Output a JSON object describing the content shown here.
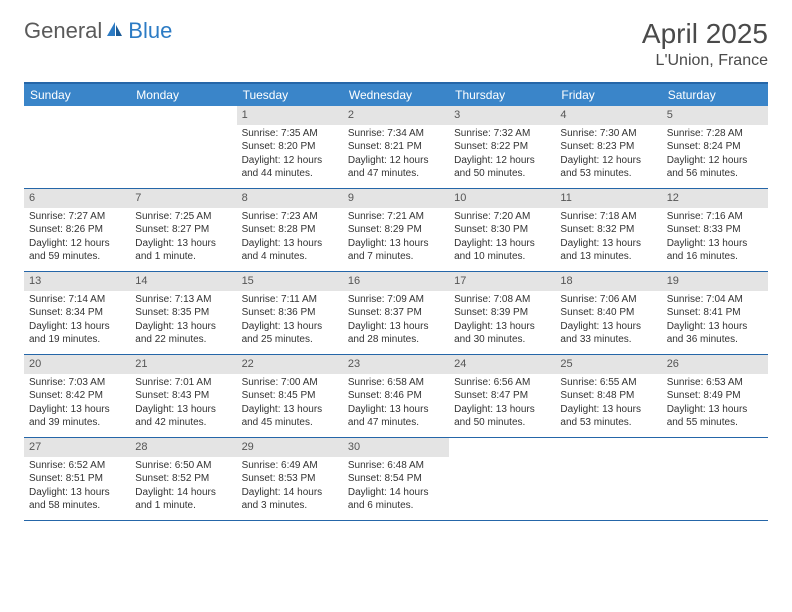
{
  "logo": {
    "general": "General",
    "blue": "Blue"
  },
  "title": "April 2025",
  "location": "L'Union, France",
  "colors": {
    "header_bar": "#3a85c9",
    "border": "#2566a8",
    "daynum_bg": "#e4e4e4",
    "text": "#333333",
    "logo_blue": "#2c7bc4",
    "logo_gray": "#5a5a5a"
  },
  "day_names": [
    "Sunday",
    "Monday",
    "Tuesday",
    "Wednesday",
    "Thursday",
    "Friday",
    "Saturday"
  ],
  "weeks": [
    [
      null,
      null,
      {
        "n": "1",
        "sr": "Sunrise: 7:35 AM",
        "ss": "Sunset: 8:20 PM",
        "dl": "Daylight: 12 hours and 44 minutes."
      },
      {
        "n": "2",
        "sr": "Sunrise: 7:34 AM",
        "ss": "Sunset: 8:21 PM",
        "dl": "Daylight: 12 hours and 47 minutes."
      },
      {
        "n": "3",
        "sr": "Sunrise: 7:32 AM",
        "ss": "Sunset: 8:22 PM",
        "dl": "Daylight: 12 hours and 50 minutes."
      },
      {
        "n": "4",
        "sr": "Sunrise: 7:30 AM",
        "ss": "Sunset: 8:23 PM",
        "dl": "Daylight: 12 hours and 53 minutes."
      },
      {
        "n": "5",
        "sr": "Sunrise: 7:28 AM",
        "ss": "Sunset: 8:24 PM",
        "dl": "Daylight: 12 hours and 56 minutes."
      }
    ],
    [
      {
        "n": "6",
        "sr": "Sunrise: 7:27 AM",
        "ss": "Sunset: 8:26 PM",
        "dl": "Daylight: 12 hours and 59 minutes."
      },
      {
        "n": "7",
        "sr": "Sunrise: 7:25 AM",
        "ss": "Sunset: 8:27 PM",
        "dl": "Daylight: 13 hours and 1 minute."
      },
      {
        "n": "8",
        "sr": "Sunrise: 7:23 AM",
        "ss": "Sunset: 8:28 PM",
        "dl": "Daylight: 13 hours and 4 minutes."
      },
      {
        "n": "9",
        "sr": "Sunrise: 7:21 AM",
        "ss": "Sunset: 8:29 PM",
        "dl": "Daylight: 13 hours and 7 minutes."
      },
      {
        "n": "10",
        "sr": "Sunrise: 7:20 AM",
        "ss": "Sunset: 8:30 PM",
        "dl": "Daylight: 13 hours and 10 minutes."
      },
      {
        "n": "11",
        "sr": "Sunrise: 7:18 AM",
        "ss": "Sunset: 8:32 PM",
        "dl": "Daylight: 13 hours and 13 minutes."
      },
      {
        "n": "12",
        "sr": "Sunrise: 7:16 AM",
        "ss": "Sunset: 8:33 PM",
        "dl": "Daylight: 13 hours and 16 minutes."
      }
    ],
    [
      {
        "n": "13",
        "sr": "Sunrise: 7:14 AM",
        "ss": "Sunset: 8:34 PM",
        "dl": "Daylight: 13 hours and 19 minutes."
      },
      {
        "n": "14",
        "sr": "Sunrise: 7:13 AM",
        "ss": "Sunset: 8:35 PM",
        "dl": "Daylight: 13 hours and 22 minutes."
      },
      {
        "n": "15",
        "sr": "Sunrise: 7:11 AM",
        "ss": "Sunset: 8:36 PM",
        "dl": "Daylight: 13 hours and 25 minutes."
      },
      {
        "n": "16",
        "sr": "Sunrise: 7:09 AM",
        "ss": "Sunset: 8:37 PM",
        "dl": "Daylight: 13 hours and 28 minutes."
      },
      {
        "n": "17",
        "sr": "Sunrise: 7:08 AM",
        "ss": "Sunset: 8:39 PM",
        "dl": "Daylight: 13 hours and 30 minutes."
      },
      {
        "n": "18",
        "sr": "Sunrise: 7:06 AM",
        "ss": "Sunset: 8:40 PM",
        "dl": "Daylight: 13 hours and 33 minutes."
      },
      {
        "n": "19",
        "sr": "Sunrise: 7:04 AM",
        "ss": "Sunset: 8:41 PM",
        "dl": "Daylight: 13 hours and 36 minutes."
      }
    ],
    [
      {
        "n": "20",
        "sr": "Sunrise: 7:03 AM",
        "ss": "Sunset: 8:42 PM",
        "dl": "Daylight: 13 hours and 39 minutes."
      },
      {
        "n": "21",
        "sr": "Sunrise: 7:01 AM",
        "ss": "Sunset: 8:43 PM",
        "dl": "Daylight: 13 hours and 42 minutes."
      },
      {
        "n": "22",
        "sr": "Sunrise: 7:00 AM",
        "ss": "Sunset: 8:45 PM",
        "dl": "Daylight: 13 hours and 45 minutes."
      },
      {
        "n": "23",
        "sr": "Sunrise: 6:58 AM",
        "ss": "Sunset: 8:46 PM",
        "dl": "Daylight: 13 hours and 47 minutes."
      },
      {
        "n": "24",
        "sr": "Sunrise: 6:56 AM",
        "ss": "Sunset: 8:47 PM",
        "dl": "Daylight: 13 hours and 50 minutes."
      },
      {
        "n": "25",
        "sr": "Sunrise: 6:55 AM",
        "ss": "Sunset: 8:48 PM",
        "dl": "Daylight: 13 hours and 53 minutes."
      },
      {
        "n": "26",
        "sr": "Sunrise: 6:53 AM",
        "ss": "Sunset: 8:49 PM",
        "dl": "Daylight: 13 hours and 55 minutes."
      }
    ],
    [
      {
        "n": "27",
        "sr": "Sunrise: 6:52 AM",
        "ss": "Sunset: 8:51 PM",
        "dl": "Daylight: 13 hours and 58 minutes."
      },
      {
        "n": "28",
        "sr": "Sunrise: 6:50 AM",
        "ss": "Sunset: 8:52 PM",
        "dl": "Daylight: 14 hours and 1 minute."
      },
      {
        "n": "29",
        "sr": "Sunrise: 6:49 AM",
        "ss": "Sunset: 8:53 PM",
        "dl": "Daylight: 14 hours and 3 minutes."
      },
      {
        "n": "30",
        "sr": "Sunrise: 6:48 AM",
        "ss": "Sunset: 8:54 PM",
        "dl": "Daylight: 14 hours and 6 minutes."
      },
      null,
      null,
      null
    ]
  ]
}
